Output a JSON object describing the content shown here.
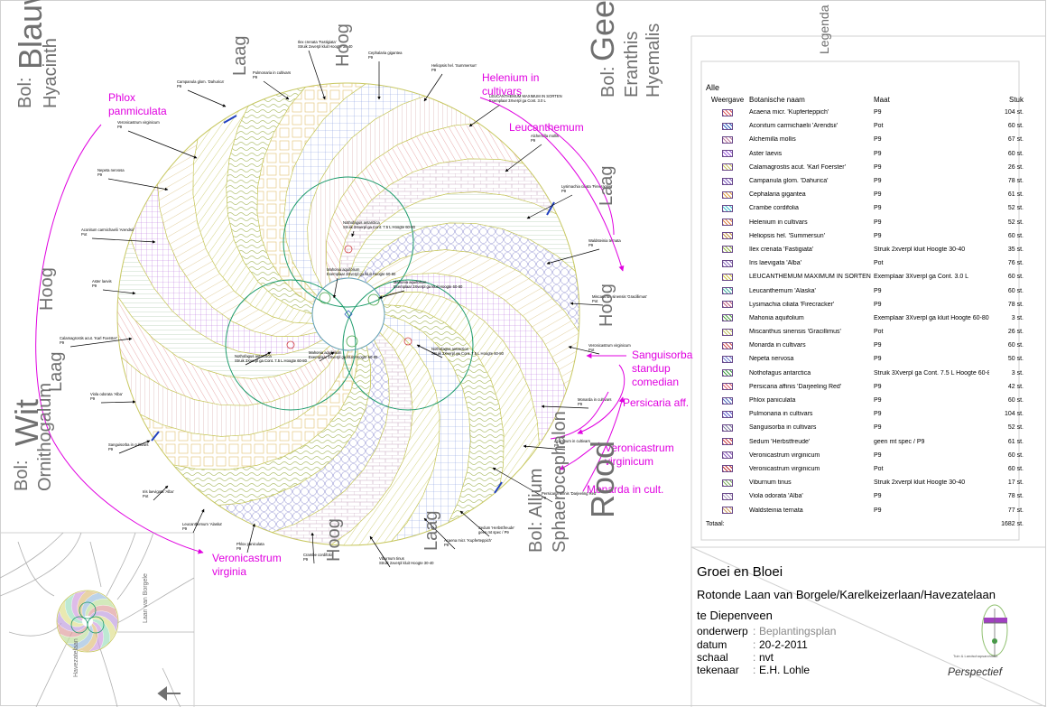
{
  "colors": {
    "annotation": "#e000e0",
    "label_gray": "#707070",
    "frame": "#d0d0d0",
    "circle_green": "#1a9a6a",
    "pattern_green": "#b8c860",
    "pattern_orange": "#e89060",
    "pattern_blue": "#7090e0",
    "pattern_purple": "#a080d0",
    "pattern_red": "#e05a5a"
  },
  "bulb_labels": {
    "blau_prefix": "Bol:",
    "blau": "Blauw",
    "blau_species": "Hyacinth",
    "geel_prefix": "Bol:",
    "geel": "Geel",
    "geel_species_1": "Eranthis",
    "geel_species_2": "Hyemalis",
    "wit_prefix": "Bol:",
    "wit": "Wit",
    "wit_species": "Ornithogalum",
    "rood_prefix": "Bol: Allium",
    "rood": "Rood",
    "rood_species": "Sphaerocephalon"
  },
  "height_labels": {
    "laag": "Laag",
    "hoog": "Hoog"
  },
  "annotations": [
    "Phlox",
    "panmiculata",
    "Helenium in",
    "cultivars",
    "Leucanthemum",
    "Sanguisorba",
    "standup",
    "comedian",
    "Persicaria aff.",
    "Veronicastrum",
    "virginicum",
    "Monarda in cult.",
    "Veronicastrum",
    "virginia"
  ],
  "plant_labels": [
    "Campanula glom. 'Dahurica'",
    "P9",
    "Pulmonaria in cultivars",
    "P9",
    "Ilex crenata 'Fastigiata'",
    "Struik 2xverpl kluit Hoogte 30-40",
    "Cephalaria gigantea",
    "P9",
    "Heliopsis hel. 'Summersun'",
    "P9",
    "LEUCANTHEMUM MAXIMUM IN SORTEN",
    "Exemplaar 3Xverpl ga Cont. 3.0 L",
    "Alchemilla mollis",
    "P9",
    "Veronicastrum virginicum",
    "P9",
    "Lysimachia ciliata 'Firecracker'",
    "P9",
    "Nepeta nervosa",
    "P9",
    "Nothofagus antarctica",
    "Struik 3Xverpl ga Cont. 7.5 L Hoogte 60-80",
    "Waldsteinia ternata",
    "P9",
    "Aconitum carmichaelii 'Arendsii'",
    "Pot",
    "Mahonia aquifolium",
    "Exemplaar 3Xverpl ga kluit Hoogte 60-80",
    "Mahonia aquifolium",
    "Exemplaar 3Xverpl ga kluit Hoogte 60-80",
    "Miscanthus sinensis 'Gracillimus'",
    "Pot",
    "Aster laevis",
    "P9",
    "Nothofagus antarctica",
    "Struik 3Xverpl ga Cont. 7.5 L Hoogte 60-80",
    "Mahonia aquifolium",
    "Exemplaar 3Xverpl ga kluit Hoogte 60-80",
    "Nothofagus antarctica",
    "Struik 3Xverpl ga Cont. 7.5 L Hoogte 60-80",
    "Veronicastrum virginicum",
    "Pot",
    "Calamagrostis acut. 'Karl Foerster'",
    "P9",
    "Viola odorata 'Alba'",
    "P9",
    "Monarda in cultivars",
    "P9",
    "Sanguisorba in cultivars",
    "P9",
    "Acanthum in cultivars",
    "P9",
    "Iris laevigata 'Alba'",
    "Pot",
    "Persicaria affinis 'Darjeeling Red'",
    "P9",
    "Leucanthemum 'Alaska'",
    "P9",
    "Phlox paniculata",
    "P9",
    "Crambe cordifolia",
    "P9",
    "Viburnum tinus",
    "Struik 2xverpl kluit Hoogte 30-40",
    "Sedum 'Herbstfreude'",
    "geen mt spec / P9",
    "Acaena micr. 'Kupferteppich'",
    "P9"
  ],
  "minimap_labels": {
    "street_1": "Laan van Borgele",
    "street_2": "Havezatelaan"
  },
  "legend": {
    "title": "Legenda",
    "filter": "Alle",
    "headers": {
      "weergave": "Weergave",
      "name": "Botanische naam",
      "maat": "Maat",
      "stuk": "Stuk"
    },
    "rows": [
      {
        "name": "Acaena micr. 'Kupferteppich'",
        "maat": "P9",
        "stuk": "104 st.",
        "color": "#e05a5a"
      },
      {
        "name": "Aconitum carmichaelii 'Arendsii'",
        "maat": "Pot",
        "stuk": "60 st.",
        "color": "#3060c0"
      },
      {
        "name": "Alchemilla mollis",
        "maat": "P9",
        "stuk": "67 st.",
        "color": "#c080a0"
      },
      {
        "name": "Aster laevis",
        "maat": "P9",
        "stuk": "60 st.",
        "color": "#a060e0"
      },
      {
        "name": "Calamagrostis acut. 'Karl Foerster'",
        "maat": "P9",
        "stuk": "26 st.",
        "color": "#c8c060"
      },
      {
        "name": "Campanula glom. 'Dahurica'",
        "maat": "P9",
        "stuk": "78 st.",
        "color": "#8060c0"
      },
      {
        "name": "Cephalaria gigantea",
        "maat": "P9",
        "stuk": "61 st.",
        "color": "#e0a040"
      },
      {
        "name": "Crambe cordifolia",
        "maat": "P9",
        "stuk": "52 st.",
        "color": "#40c0d0"
      },
      {
        "name": "Helenium in cultivars",
        "maat": "P9",
        "stuk": "52 st.",
        "color": "#e08040"
      },
      {
        "name": "Heliopsis hel. 'Summersun'",
        "maat": "P9",
        "stuk": "60 st.",
        "color": "#c09040"
      },
      {
        "name": "Ilex crenata 'Fastigiata'",
        "maat": "Struik 2xverpl kluit Hoogte 30-40",
        "stuk": "35 st.",
        "color": "#90b040"
      },
      {
        "name": "Iris laevigata 'Alba'",
        "maat": "Pot",
        "stuk": "76 st.",
        "color": "#9070c0"
      },
      {
        "name": "LEUCANTHEMUM MAXIMUM IN SORTEN",
        "maat": "Exemplaar 3Xverpl ga Cont. 3.0 L",
        "stuk": "60 st.",
        "color": "#d0c040"
      },
      {
        "name": "Leucanthemum 'Alaska'",
        "maat": "P9",
        "stuk": "60 st.",
        "color": "#40b0a0"
      },
      {
        "name": "Lysimachia ciliata 'Firecracker'",
        "maat": "P9",
        "stuk": "78 st.",
        "color": "#c06080"
      },
      {
        "name": "Mahonia aquifolium",
        "maat": "Exemplaar 3Xverpl ga kluit Hoogte 60-80",
        "stuk": "3 st.",
        "color": "#50a040"
      },
      {
        "name": "Miscanthus sinensis 'Gracillimus'",
        "maat": "Pot",
        "stuk": "26 st.",
        "color": "#c0c060"
      },
      {
        "name": "Monarda in cultivars",
        "maat": "P9",
        "stuk": "60 st.",
        "color": "#d05050"
      },
      {
        "name": "Nepeta nervosa",
        "maat": "P9",
        "stuk": "50 st.",
        "color": "#7080d0"
      },
      {
        "name": "Nothofagus antarctica",
        "maat": "Struik 3Xverpl ga Cont. 7.5 L Hoogte 60-80",
        "stuk": "3 st.",
        "color": "#40a040"
      },
      {
        "name": "Persicaria affinis 'Darjeeling Red'",
        "maat": "P9",
        "stuk": "42 st.",
        "color": "#e06070"
      },
      {
        "name": "Phlox paniculata",
        "maat": "P9",
        "stuk": "60 st.",
        "color": "#5070c0"
      },
      {
        "name": "Pulmonaria in cultivars",
        "maat": "P9",
        "stuk": "104 st.",
        "color": "#6060d0"
      },
      {
        "name": "Sanguisorba in cultivars",
        "maat": "P9",
        "stuk": "52 st.",
        "color": "#8080a0"
      },
      {
        "name": "Sedum 'Herbstfreude'",
        "maat": "geen mt spec / P9",
        "stuk": "61 st.",
        "color": "#d04040"
      },
      {
        "name": "Veronicastrum virginicum",
        "maat": "P9",
        "stuk": "60 st.",
        "color": "#9060c0"
      },
      {
        "name": "Veronicastrum virginicum",
        "maat": "Pot",
        "stuk": "60 st.",
        "color": "#c03030"
      },
      {
        "name": "Viburnum tinus",
        "maat": "Struik 2xverpl kluit Hoogte 30-40",
        "stuk": "17 st.",
        "color": "#80b060"
      },
      {
        "name": "Viola odorata 'Alba'",
        "maat": "P9",
        "stuk": "78 st.",
        "color": "#b0a0c0"
      },
      {
        "name": "Waldsteinia ternata",
        "maat": "P9",
        "stuk": "77 st.",
        "color": "#d0a060"
      }
    ],
    "total_label": "Totaal:",
    "total_value": "1682 st."
  },
  "title_block": {
    "company": "Groei en Bloei",
    "project": "Rotonde Laan van Borgele/Karelkeizerlaan/Havezatelaan",
    "place": "te Diepenveen",
    "onderwerp_label": "onderwerp",
    "onderwerp_value": "Beplantingsplan",
    "datum_label": "datum",
    "datum_value": "20-2-2011",
    "schaal_label": "schaal",
    "schaal_value": "nvt",
    "tekenaar_label": "tekenaar",
    "tekenaar_value": "E.H. Lohle",
    "colon": ":",
    "logo_small": "Tuin & Landschapsarchitect",
    "logo_name": "Perspectief"
  }
}
